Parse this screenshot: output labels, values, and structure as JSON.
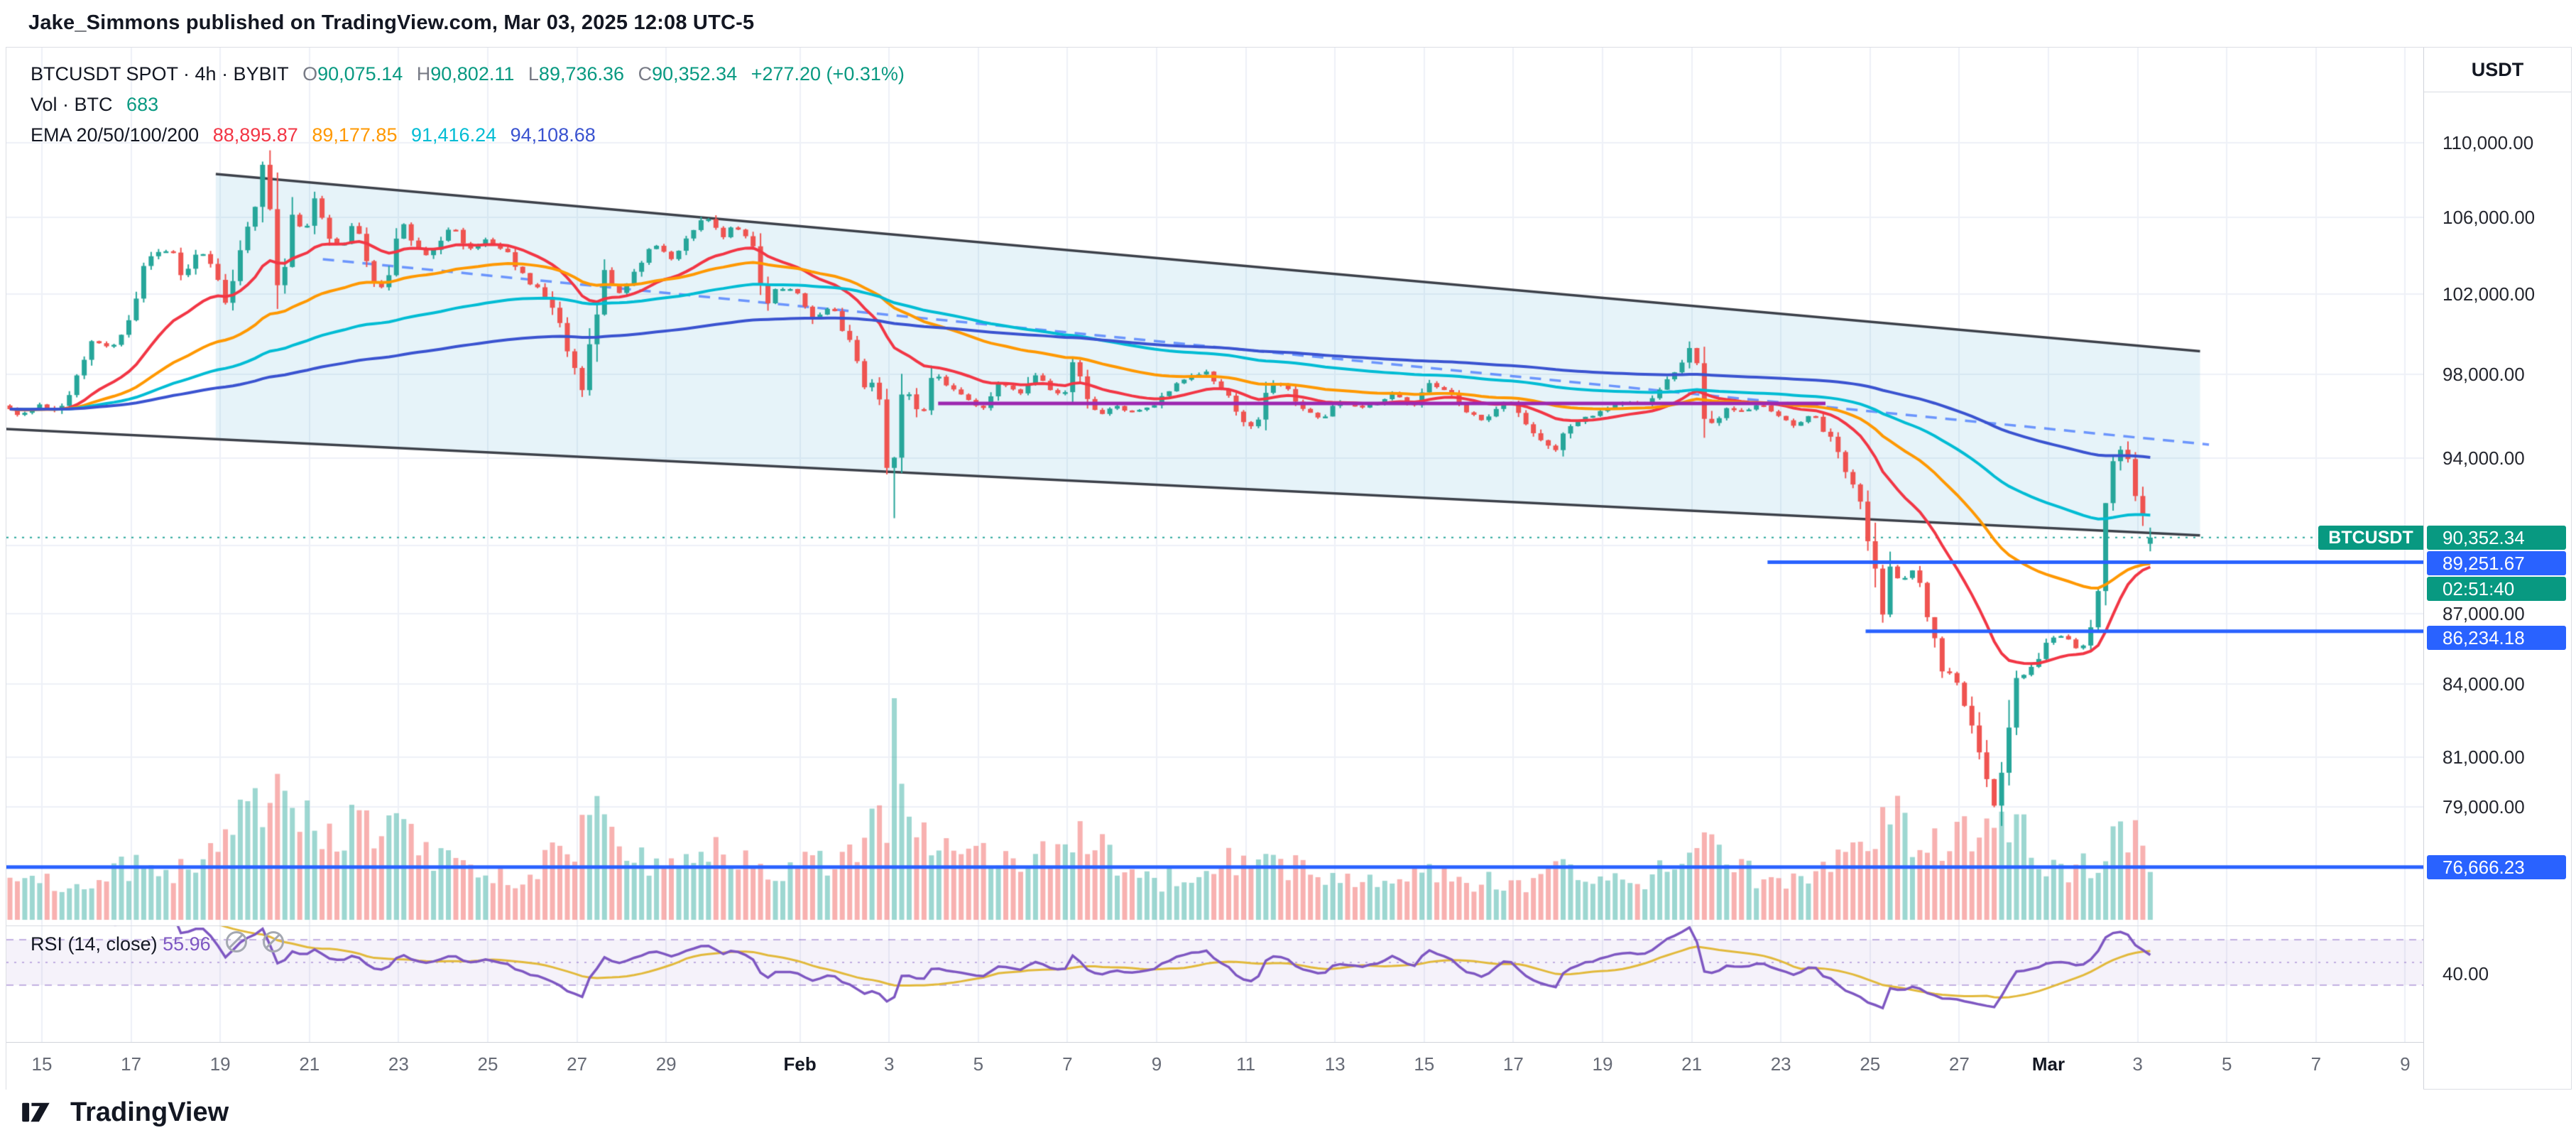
{
  "attribution": {
    "text": "Jake_Simmons published on TradingView.com, Mar 03, 2025 12:08 UTC-5"
  },
  "footer": {
    "brand": "TradingView"
  },
  "legend": {
    "symbol": {
      "title": "BTCUSDT SPOT · 4h · BYBIT",
      "o_label": "O",
      "o_value": "90,075.14",
      "h_label": "H",
      "h_value": "90,802.11",
      "l_label": "L",
      "l_value": "89,736.36",
      "c_label": "C",
      "c_value": "90,352.34",
      "change": "+277.20 (+0.31%)"
    },
    "volume": {
      "title": "Vol · BTC",
      "value": "683"
    },
    "ema": {
      "title": "EMA 20/50/100/200",
      "values": [
        "88,895.87",
        "89,177.85",
        "91,416.24",
        "94,108.68"
      ]
    },
    "rsi": {
      "title": "RSI",
      "params": "(14, close)",
      "value": "55.96"
    }
  },
  "price_scale": {
    "currency": "USDT",
    "labels": [
      {
        "label": "110,000.00",
        "price": 110000
      },
      {
        "label": "106,000.00",
        "price": 106000
      },
      {
        "label": "102,000.00",
        "price": 102000
      },
      {
        "label": "98,000.00",
        "price": 98000
      },
      {
        "label": "94,000.00",
        "price": 94000
      },
      {
        "label": "87,000.00",
        "price": 87000
      },
      {
        "label": "84,000.00",
        "price": 84000
      },
      {
        "label": "81,000.00",
        "price": 81000
      },
      {
        "label": "79,000.00",
        "price": 79000
      }
    ],
    "rsi_label": "40.00"
  },
  "badges": {
    "symbol_tag": "BTCUSDT",
    "last_price": "90,352.34",
    "countdown": "02:51:40"
  },
  "time_scale": {
    "day_zero_date": "Jan 15",
    "ticks": [
      {
        "label": "15",
        "day": 0
      },
      {
        "label": "17",
        "day": 2
      },
      {
        "label": "19",
        "day": 4
      },
      {
        "label": "21",
        "day": 6
      },
      {
        "label": "23",
        "day": 8
      },
      {
        "label": "25",
        "day": 10
      },
      {
        "label": "27",
        "day": 12
      },
      {
        "label": "29",
        "day": 14
      },
      {
        "label": "Feb",
        "day": 17,
        "major": true
      },
      {
        "label": "3",
        "day": 19
      },
      {
        "label": "5",
        "day": 21
      },
      {
        "label": "7",
        "day": 23
      },
      {
        "label": "9",
        "day": 25
      },
      {
        "label": "11",
        "day": 27
      },
      {
        "label": "13",
        "day": 29
      },
      {
        "label": "15",
        "day": 31
      },
      {
        "label": "17",
        "day": 33
      },
      {
        "label": "19",
        "day": 35
      },
      {
        "label": "21",
        "day": 37
      },
      {
        "label": "23",
        "day": 39
      },
      {
        "label": "25",
        "day": 41
      },
      {
        "label": "27",
        "day": 43
      },
      {
        "label": "Mar",
        "day": 45,
        "major": true
      },
      {
        "label": "3",
        "day": 47
      },
      {
        "label": "5",
        "day": 49
      },
      {
        "label": "7",
        "day": 51
      },
      {
        "label": "9",
        "day": 53
      }
    ]
  },
  "colors": {
    "grid": "#eef1f7",
    "up": "#26a69a",
    "down": "#ef5350",
    "vol_up": "rgba(38,166,154,0.45)",
    "vol_down": "rgba(239,83,80,0.45)",
    "ema": [
      "#f23645",
      "#ff9800",
      "#00bcd4",
      "#3a53d0"
    ],
    "rsi_line": "#7e57c2",
    "rsi_ma": "#e2b93b",
    "rsi_band": "rgba(126,87,194,0.08)",
    "rsi_band_line": "rgba(126,87,194,0.45)",
    "level_blue": "#2962ff",
    "line_purple": "#9c27b0",
    "channel_line": "#3c4049",
    "channel_fill": "rgba(80,170,210,0.14)",
    "trend_dashed": "rgba(41,98,255,0.65)",
    "badge_green": "#089981",
    "badge_blue": "#2962ff"
  },
  "chart_data": {
    "type": "candlestick",
    "symbol": "BTCUSDT",
    "market": "SPOT",
    "interval": "4h",
    "exchange": "BYBIT",
    "quote_currency": "USDT",
    "title": "BTCUSDT SPOT · 4h · BYBIT",
    "current_bar": {
      "open": 90075.14,
      "high": 90802.11,
      "low": 89736.36,
      "close": 90352.34,
      "change_abs": 277.2,
      "change_pct": 0.31
    },
    "volume_btc": 683,
    "ema": {
      "periods": [
        20,
        50,
        100,
        200
      ],
      "values": [
        88895.87,
        89177.85,
        91416.24,
        94108.68
      ]
    },
    "rsi": {
      "period": 14,
      "source": "close",
      "value": 55.96,
      "upper_band": 70,
      "lower_band": 30
    },
    "price_axis": {
      "scale": "log",
      "ticks": [
        110000,
        106000,
        102000,
        98000,
        94000,
        90000,
        87000,
        84000,
        81000,
        79000
      ]
    },
    "levels": [
      {
        "label": "89,251.67",
        "price": 89251.67,
        "from_day": 38.7
      },
      {
        "label": "86,234.18",
        "price": 86234.18,
        "from_day": 40.9
      },
      {
        "label": "76,666.23",
        "price": 76666.23,
        "from_day": -0.8
      }
    ],
    "resistance_line": {
      "price": 96600,
      "from_day": 20.1,
      "to_day": 40.0
    },
    "channel": {
      "upper": [
        [
          3.9,
          108300
        ],
        [
          48.4,
          99150
        ]
      ],
      "lower": [
        [
          -0.8,
          95380
        ],
        [
          48.4,
          90450
        ]
      ],
      "mid_dashed": [
        [
          6.3,
          103800
        ],
        [
          48.6,
          94640
        ]
      ]
    },
    "wick_overrides": [
      {
        "day": 5.08,
        "high": 109588
      },
      {
        "day": 19.1,
        "low": 91231
      },
      {
        "day": 43.85,
        "low": 78258
      }
    ],
    "price_path_keypoints": [
      [
        -0.8,
        96500
      ],
      [
        -0.4,
        96000
      ],
      [
        0,
        96600
      ],
      [
        0.4,
        96200
      ],
      [
        0.8,
        97400
      ],
      [
        1.2,
        99600
      ],
      [
        1.6,
        99300
      ],
      [
        2.0,
        100200
      ],
      [
        2.3,
        102800
      ],
      [
        2.6,
        104200
      ],
      [
        3.0,
        104300
      ],
      [
        3.2,
        102900
      ],
      [
        3.6,
        104400
      ],
      [
        3.9,
        103500
      ],
      [
        4.2,
        101600
      ],
      [
        4.5,
        103900
      ],
      [
        4.8,
        105900
      ],
      [
        5.0,
        107600
      ],
      [
        5.08,
        109300
      ],
      [
        5.2,
        106200
      ],
      [
        5.35,
        101800
      ],
      [
        5.55,
        103500
      ],
      [
        5.75,
        106100
      ],
      [
        5.95,
        105000
      ],
      [
        6.2,
        106800
      ],
      [
        6.5,
        105200
      ],
      [
        6.8,
        104300
      ],
      [
        7.1,
        106000
      ],
      [
        7.4,
        103700
      ],
      [
        7.65,
        101900
      ],
      [
        7.9,
        103400
      ],
      [
        8.1,
        106300
      ],
      [
        8.35,
        104600
      ],
      [
        8.7,
        103900
      ],
      [
        9.0,
        104800
      ],
      [
        9.3,
        105700
      ],
      [
        9.6,
        104200
      ],
      [
        10.0,
        104800
      ],
      [
        10.5,
        104200
      ],
      [
        10.9,
        102800
      ],
      [
        11.3,
        102200
      ],
      [
        11.7,
        100400
      ],
      [
        12.0,
        98300
      ],
      [
        12.2,
        97300
      ],
      [
        12.45,
        100500
      ],
      [
        12.7,
        102800
      ],
      [
        13.0,
        101900
      ],
      [
        13.4,
        103400
      ],
      [
        13.8,
        104600
      ],
      [
        14.2,
        103800
      ],
      [
        14.6,
        105200
      ],
      [
        15.0,
        106100
      ],
      [
        15.3,
        104800
      ],
      [
        15.6,
        105600
      ],
      [
        16.0,
        104600
      ],
      [
        16.3,
        101600
      ],
      [
        16.6,
        102400
      ],
      [
        17.0,
        102100
      ],
      [
        17.4,
        100700
      ],
      [
        17.8,
        101400
      ],
      [
        18.2,
        99600
      ],
      [
        18.55,
        96800
      ],
      [
        18.8,
        98000
      ],
      [
        19.05,
        93500
      ],
      [
        19.15,
        92900
      ],
      [
        19.3,
        96300
      ],
      [
        19.5,
        97400
      ],
      [
        19.8,
        95700
      ],
      [
        20.1,
        98000
      ],
      [
        20.4,
        97500
      ],
      [
        20.8,
        96900
      ],
      [
        21.2,
        96300
      ],
      [
        21.6,
        97700
      ],
      [
        22.0,
        96900
      ],
      [
        22.3,
        98200
      ],
      [
        22.6,
        97400
      ],
      [
        23.0,
        96900
      ],
      [
        23.25,
        98900
      ],
      [
        23.5,
        96800
      ],
      [
        23.8,
        95900
      ],
      [
        24.1,
        96500
      ],
      [
        24.5,
        96200
      ],
      [
        25.0,
        96500
      ],
      [
        25.4,
        97300
      ],
      [
        25.8,
        97900
      ],
      [
        26.2,
        98200
      ],
      [
        26.6,
        97200
      ],
      [
        27.0,
        95900
      ],
      [
        27.3,
        95400
      ],
      [
        27.6,
        97600
      ],
      [
        28.0,
        97400
      ],
      [
        28.4,
        96200
      ],
      [
        28.8,
        95900
      ],
      [
        29.2,
        96700
      ],
      [
        29.6,
        96400
      ],
      [
        30.0,
        96600
      ],
      [
        30.4,
        97100
      ],
      [
        30.8,
        96400
      ],
      [
        31.2,
        97500
      ],
      [
        31.6,
        97200
      ],
      [
        32.0,
        96300
      ],
      [
        32.4,
        95800
      ],
      [
        33.0,
        96800
      ],
      [
        33.4,
        95600
      ],
      [
        34.0,
        94300
      ],
      [
        34.3,
        95600
      ],
      [
        34.7,
        95900
      ],
      [
        35.1,
        96300
      ],
      [
        35.5,
        96700
      ],
      [
        36.0,
        96500
      ],
      [
        36.4,
        97400
      ],
      [
        36.8,
        98200
      ],
      [
        37.05,
        99300
      ],
      [
        37.25,
        98200
      ],
      [
        37.45,
        95200
      ],
      [
        37.8,
        96300
      ],
      [
        38.2,
        96200
      ],
      [
        38.6,
        96600
      ],
      [
        39.0,
        96000
      ],
      [
        39.4,
        95500
      ],
      [
        39.8,
        96100
      ],
      [
        40.2,
        94900
      ],
      [
        40.6,
        93300
      ],
      [
        40.95,
        91800
      ],
      [
        41.15,
        88800
      ],
      [
        41.35,
        86500
      ],
      [
        41.55,
        88700
      ],
      [
        41.8,
        88400
      ],
      [
        42.1,
        89100
      ],
      [
        42.4,
        87000
      ],
      [
        42.7,
        84900
      ],
      [
        43.0,
        84200
      ],
      [
        43.3,
        82900
      ],
      [
        43.6,
        80600
      ],
      [
        43.85,
        79200
      ],
      [
        44.05,
        80500
      ],
      [
        44.3,
        84500
      ],
      [
        44.6,
        84300
      ],
      [
        45.0,
        85700
      ],
      [
        45.4,
        86100
      ],
      [
        45.8,
        85300
      ],
      [
        46.1,
        86500
      ],
      [
        46.45,
        92800
      ],
      [
        46.7,
        94700
      ],
      [
        46.9,
        93400
      ],
      [
        47.1,
        92000
      ],
      [
        47.34,
        90352
      ]
    ],
    "volume_keypoints": [
      [
        -0.8,
        0.16
      ],
      [
        0,
        0.18
      ],
      [
        1,
        0.15
      ],
      [
        2,
        0.26
      ],
      [
        3,
        0.22
      ],
      [
        4,
        0.32
      ],
      [
        5,
        0.6
      ],
      [
        5.3,
        0.78
      ],
      [
        6,
        0.38
      ],
      [
        7,
        0.42
      ],
      [
        8,
        0.4
      ],
      [
        9,
        0.26
      ],
      [
        10,
        0.18
      ],
      [
        11,
        0.22
      ],
      [
        12,
        0.4
      ],
      [
        12.4,
        0.44
      ],
      [
        13,
        0.26
      ],
      [
        14,
        0.28
      ],
      [
        15,
        0.3
      ],
      [
        16,
        0.24
      ],
      [
        17,
        0.24
      ],
      [
        18,
        0.32
      ],
      [
        18.9,
        0.5
      ],
      [
        19.1,
        1.0
      ],
      [
        19.3,
        0.55
      ],
      [
        19.6,
        0.42
      ],
      [
        20,
        0.36
      ],
      [
        21,
        0.3
      ],
      [
        21.6,
        0.38
      ],
      [
        22,
        0.26
      ],
      [
        23,
        0.34
      ],
      [
        23.4,
        0.4
      ],
      [
        24,
        0.24
      ],
      [
        25,
        0.18
      ],
      [
        26,
        0.26
      ],
      [
        27,
        0.3
      ],
      [
        28,
        0.24
      ],
      [
        29,
        0.18
      ],
      [
        30,
        0.16
      ],
      [
        31,
        0.2
      ],
      [
        32,
        0.18
      ],
      [
        33,
        0.16
      ],
      [
        34,
        0.24
      ],
      [
        35,
        0.16
      ],
      [
        36,
        0.18
      ],
      [
        37,
        0.34
      ],
      [
        37.5,
        0.38
      ],
      [
        38,
        0.22
      ],
      [
        39,
        0.16
      ],
      [
        40,
        0.24
      ],
      [
        41,
        0.44
      ],
      [
        41.4,
        0.52
      ],
      [
        42,
        0.32
      ],
      [
        43,
        0.36
      ],
      [
        43.9,
        0.52
      ],
      [
        44.2,
        0.42
      ],
      [
        45,
        0.22
      ],
      [
        46,
        0.26
      ],
      [
        46.6,
        0.44
      ],
      [
        47,
        0.36
      ],
      [
        47.34,
        0.22
      ]
    ]
  }
}
